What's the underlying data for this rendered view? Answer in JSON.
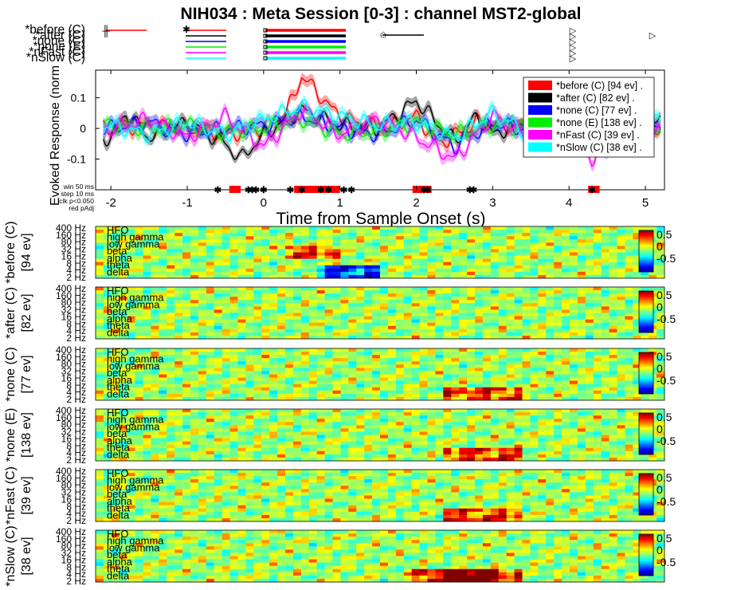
{
  "title": "NIH034 : Meta Session [0-3] : channel MST2-global",
  "colors": {
    "before": "#ff0000",
    "after": "#000000",
    "noneC": "#0000ff",
    "noneE": "#00ee00",
    "nFast": "#ff00ff",
    "nSlow": "#00ffff",
    "sigbar": "#ff0000"
  },
  "events": {
    "labels": [
      "*before (C)",
      "*after (C)",
      "*none (C)",
      "*none (E)",
      "*nFast (C)",
      "*nSlow (C)"
    ]
  },
  "chart_data": [
    {
      "type": "line",
      "title": "NIH034 : Meta Session [0-3] : channel MST2-global",
      "xlabel": "Time from Sample Onset (s)",
      "ylabel": "Evoked Response (norm",
      "xlim": [
        -2.2,
        5.25
      ],
      "ylim": [
        -0.2,
        0.19
      ],
      "xticks": [
        "-2",
        "-1",
        "0",
        "1",
        "2",
        "3",
        "4",
        "5"
      ],
      "yticks": [
        "0.1",
        "0",
        "-0.1"
      ],
      "grid": false,
      "legend_position": "top-right",
      "series": [
        {
          "name": "*before (C) [94 ev] .",
          "color": "#ff0000",
          "points": [
            [
              -2.0,
              0.0
            ],
            [
              -1.5,
              0.01
            ],
            [
              -1.0,
              0.0
            ],
            [
              -0.5,
              -0.02
            ],
            [
              0.0,
              0.0
            ],
            [
              0.3,
              0.05
            ],
            [
              0.5,
              0.17
            ],
            [
              0.7,
              0.12
            ],
            [
              0.9,
              0.06
            ],
            [
              1.2,
              0.02
            ],
            [
              1.6,
              0.0
            ],
            [
              2.0,
              0.04
            ],
            [
              2.3,
              -0.05
            ],
            [
              2.8,
              0.02
            ],
            [
              3.5,
              0.0
            ],
            [
              4.0,
              0.0
            ],
            [
              4.5,
              -0.02
            ],
            [
              5.0,
              0.0
            ]
          ]
        },
        {
          "name": "*after (C) [82 ev] .",
          "color": "#000000",
          "points": [
            [
              -2.0,
              -0.03
            ],
            [
              -1.8,
              0.05
            ],
            [
              -1.5,
              -0.03
            ],
            [
              -1.0,
              0.02
            ],
            [
              -0.5,
              -0.05
            ],
            [
              -0.3,
              -0.1
            ],
            [
              0.0,
              -0.02
            ],
            [
              0.5,
              0.06
            ],
            [
              1.0,
              0.01
            ],
            [
              1.5,
              0.0
            ],
            [
              2.0,
              0.09
            ],
            [
              2.5,
              -0.04
            ],
            [
              2.8,
              0.04
            ],
            [
              3.0,
              -0.02
            ],
            [
              3.5,
              0.03
            ],
            [
              4.0,
              0.0
            ],
            [
              4.5,
              -0.03
            ],
            [
              5.0,
              0.02
            ]
          ]
        },
        {
          "name": "*none (C) [77 ev] .",
          "color": "#0000ff",
          "points": [
            [
              -2.0,
              0.0
            ],
            [
              -1.5,
              0.02
            ],
            [
              -1.0,
              -0.02
            ],
            [
              -0.5,
              0.0
            ],
            [
              0.0,
              0.01
            ],
            [
              0.5,
              0.04
            ],
            [
              1.0,
              0.0
            ],
            [
              1.5,
              -0.02
            ],
            [
              2.0,
              0.03
            ],
            [
              2.5,
              -0.06
            ],
            [
              3.0,
              0.02
            ],
            [
              3.5,
              -0.01
            ],
            [
              4.0,
              0.02
            ],
            [
              4.5,
              -0.02
            ],
            [
              5.0,
              0.0
            ]
          ]
        },
        {
          "name": "*none (E) [138 ev] .",
          "color": "#00ee00",
          "points": [
            [
              -2.0,
              0.01
            ],
            [
              -1.5,
              0.0
            ],
            [
              -1.0,
              0.01
            ],
            [
              -0.5,
              -0.01
            ],
            [
              0.0,
              0.0
            ],
            [
              0.5,
              0.03
            ],
            [
              1.0,
              -0.02
            ],
            [
              1.5,
              -0.01
            ],
            [
              2.0,
              0.02
            ],
            [
              2.5,
              -0.02
            ],
            [
              3.0,
              0.01
            ],
            [
              3.5,
              0.0
            ],
            [
              4.0,
              0.01
            ],
            [
              4.5,
              -0.01
            ],
            [
              5.0,
              0.0
            ]
          ]
        },
        {
          "name": "*nFast (C) [39 ev] .",
          "color": "#ff00ff",
          "points": [
            [
              -2.0,
              0.0
            ],
            [
              -1.5,
              0.03
            ],
            [
              -1.0,
              -0.03
            ],
            [
              -0.5,
              0.04
            ],
            [
              0.0,
              -0.06
            ],
            [
              0.5,
              0.06
            ],
            [
              1.0,
              -0.02
            ],
            [
              1.5,
              0.03
            ],
            [
              2.0,
              -0.03
            ],
            [
              2.5,
              -0.1
            ],
            [
              3.0,
              0.04
            ],
            [
              3.5,
              -0.03
            ],
            [
              4.0,
              0.03
            ],
            [
              4.3,
              -0.1
            ],
            [
              5.0,
              0.0
            ]
          ]
        },
        {
          "name": "*nSlow (C) [38 ev] .",
          "color": "#00ffff",
          "points": [
            [
              -2.0,
              0.01
            ],
            [
              -1.5,
              -0.02
            ],
            [
              -1.0,
              0.02
            ],
            [
              -0.5,
              -0.02
            ],
            [
              0.0,
              0.03
            ],
            [
              0.5,
              0.07
            ],
            [
              1.0,
              0.04
            ],
            [
              1.5,
              0.01
            ],
            [
              2.0,
              0.02
            ],
            [
              2.5,
              -0.03
            ],
            [
              3.0,
              0.05
            ],
            [
              3.5,
              -0.02
            ],
            [
              4.0,
              0.02
            ],
            [
              4.5,
              -0.06
            ],
            [
              5.0,
              0.02
            ]
          ]
        }
      ],
      "annotations": [
        "win 50 ms",
        "step 10 ms",
        "clk p<0.050",
        "red pAdj"
      ],
      "significance_intervals_s": [
        [
          -0.45,
          -0.3
        ],
        [
          0.4,
          1.0
        ],
        [
          1.95,
          2.2
        ],
        [
          4.25,
          4.4
        ]
      ],
      "marker_times_s": [
        -0.6,
        -0.2,
        -0.15,
        -0.1,
        0.0,
        0.35,
        0.5,
        0.75,
        0.85,
        1.05,
        1.15,
        2.1,
        2.15,
        2.7,
        2.75,
        4.3
      ]
    },
    {
      "type": "heatmap",
      "panel_labels": [
        "*before (C)\n[94 ev]",
        "*after (C)\n[82 ev]",
        "*none (C)\n[77 ev]",
        "*none (E)\n[138 ev]",
        "*nFast (C)\n[39 ev]",
        "*nSlow (C)\n[38 ev]"
      ],
      "yticks": [
        "400 Hz",
        "160 Hz",
        "80 Hz",
        "32 Hz",
        "16 Hz",
        "8 Hz",
        "4 Hz",
        "2 Hz"
      ],
      "bands": [
        "HFO",
        "high gamma",
        "low gamma",
        "beta",
        "alpha",
        "theta",
        "delta"
      ],
      "colorbar_ticks": [
        "0.5",
        "0",
        "-0.5"
      ],
      "clim": [
        -0.8,
        0.8
      ],
      "colormap": "jet"
    }
  ]
}
